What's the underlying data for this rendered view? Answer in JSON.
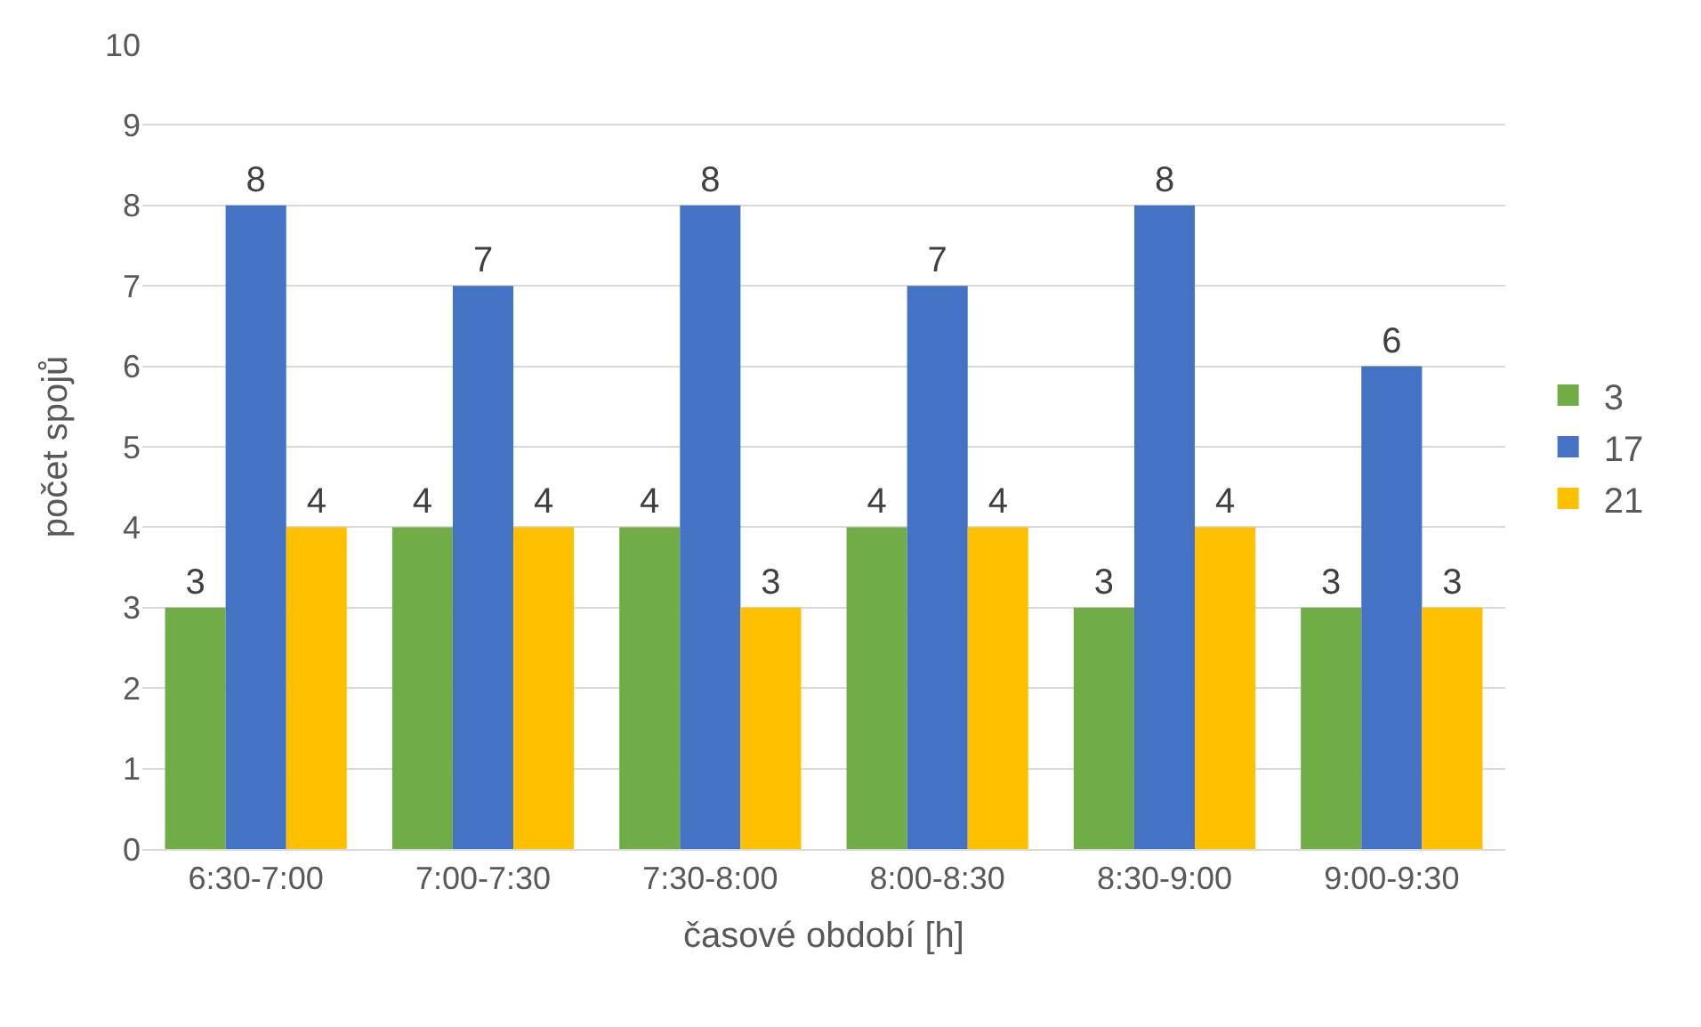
{
  "chart_data": {
    "type": "bar",
    "xlabel": "časové období [h]",
    "ylabel": "počet spojů",
    "categories": [
      "6:30-7:00",
      "7:00-7:30",
      "7:30-8:00",
      "8:00-8:30",
      "8:30-9:00",
      "9:00-9:30"
    ],
    "series": [
      {
        "name": "3",
        "color": "#70ad47",
        "values": [
          3,
          4,
          4,
          4,
          3,
          3
        ]
      },
      {
        "name": "17",
        "color": "#4472c4",
        "values": [
          8,
          7,
          8,
          7,
          8,
          6
        ]
      },
      {
        "name": "21",
        "color": "#ffc000",
        "values": [
          4,
          4,
          3,
          4,
          4,
          3
        ]
      }
    ],
    "ylim": [
      0,
      10
    ],
    "yticks": [
      0,
      1,
      2,
      3,
      4,
      5,
      6,
      7,
      8,
      9,
      10
    ],
    "grid": "y",
    "legend": "right",
    "data_labels": true
  }
}
